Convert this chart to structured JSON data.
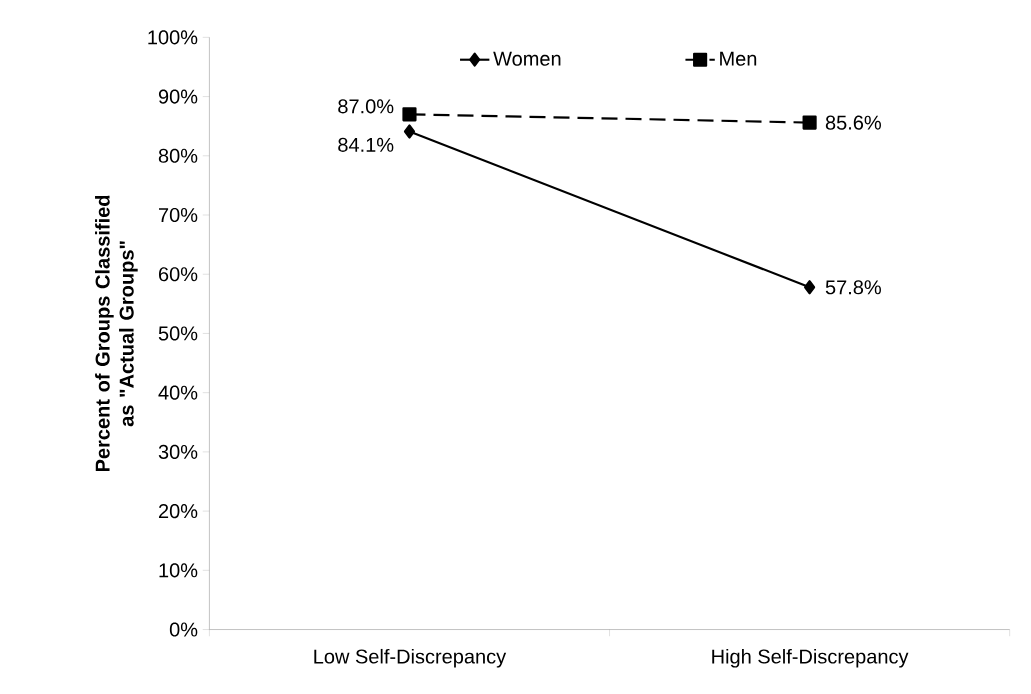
{
  "chart_data": {
    "type": "line",
    "ylabel": "Percent of Groups Classified as \"Actual Groups\"",
    "categories": [
      "Low Self-Discrepancy",
      "High Self-Discrepancy"
    ],
    "series": [
      {
        "name": "Women",
        "color": "#000000",
        "values": [
          84.1,
          57.8
        ],
        "value_labels": [
          "84.1%",
          "57.8%"
        ],
        "marker": "diamond",
        "line_style": "solid"
      },
      {
        "name": "Men",
        "color": "#000000",
        "values": [
          87.0,
          85.6
        ],
        "value_labels": [
          "87.0%",
          "85.6%"
        ],
        "marker": "square",
        "line_style": "dashed"
      }
    ],
    "ylim": [
      0,
      100
    ],
    "yticks": [
      {
        "value": 0,
        "label": "0%"
      },
      {
        "value": 10,
        "label": "10%"
      },
      {
        "value": 20,
        "label": "20%"
      },
      {
        "value": 30,
        "label": "30%"
      },
      {
        "value": 40,
        "label": "40%"
      },
      {
        "value": 50,
        "label": "50%"
      },
      {
        "value": 60,
        "label": "60%"
      },
      {
        "value": 70,
        "label": "70%"
      },
      {
        "value": 80,
        "label": "80%"
      },
      {
        "value": 90,
        "label": "90%"
      },
      {
        "value": 100,
        "label": "100%"
      }
    ],
    "grid": false,
    "legend": "top"
  }
}
